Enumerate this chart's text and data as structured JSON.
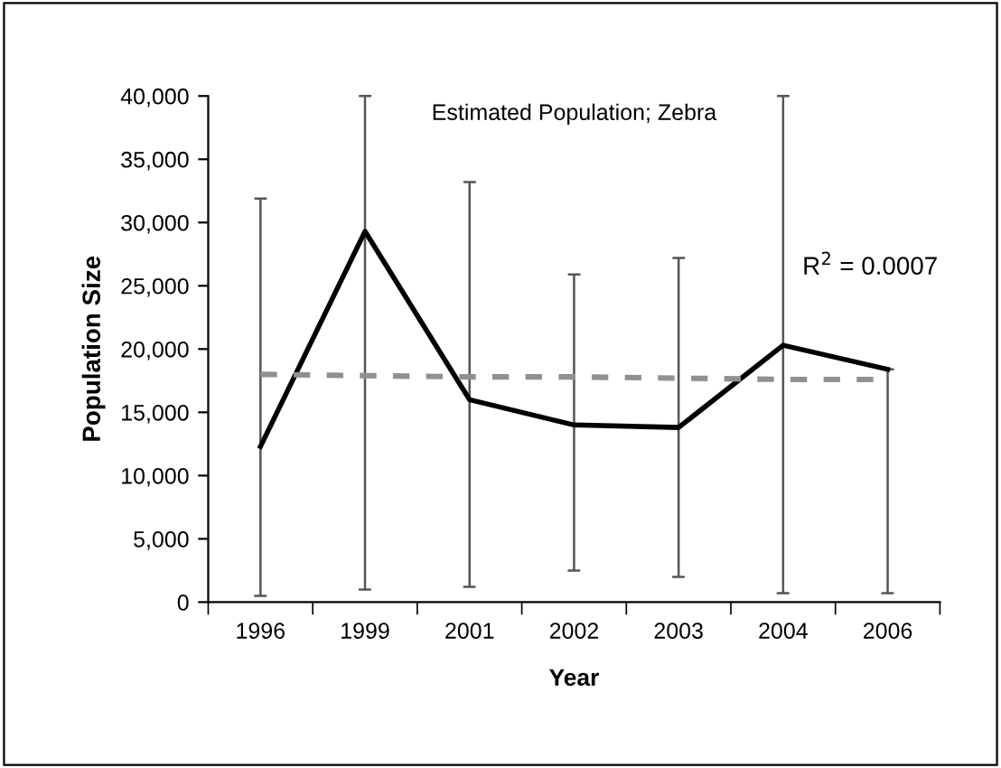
{
  "chart_data": {
    "type": "line",
    "title": "Estimated Population; Zebra",
    "xlabel": "Year",
    "ylabel": "Population Size",
    "categories": [
      "1996",
      "1999",
      "2001",
      "2002",
      "2003",
      "2004",
      "2006"
    ],
    "series": [
      {
        "color": "#000000",
        "values": [
          12300,
          29300,
          16000,
          14000,
          13800,
          20300,
          18400
        ],
        "errors": [
          [
            500,
            31900
          ],
          [
            1000,
            40000
          ],
          [
            1200,
            33200
          ],
          [
            2500,
            25900
          ],
          [
            2000,
            27200
          ],
          [
            700,
            40000
          ],
          [
            700,
            18400
          ]
        ]
      },
      {
        "color": "#909090",
        "line_style": "dashed",
        "values": [
          18000,
          17900,
          17800,
          17800,
          17700,
          17600,
          17600
        ]
      }
    ],
    "annotations": [
      "R$^{2}$ = 0.0007"
    ],
    "ylim": [
      0,
      40000
    ],
    "yticks": [
      {
        "value": 0,
        "label": "0"
      },
      {
        "value": 5000,
        "label": "5,000"
      },
      {
        "value": 10000,
        "label": "10,000"
      },
      {
        "value": 15000,
        "label": "15,000"
      },
      {
        "value": 20000,
        "label": "20,000"
      },
      {
        "value": 25000,
        "label": "25,000"
      },
      {
        "value": 30000,
        "label": "30,000"
      },
      {
        "value": 35000,
        "label": "35,000"
      },
      {
        "value": 40000,
        "label": "40,000"
      }
    ],
    "marker": "none"
  }
}
